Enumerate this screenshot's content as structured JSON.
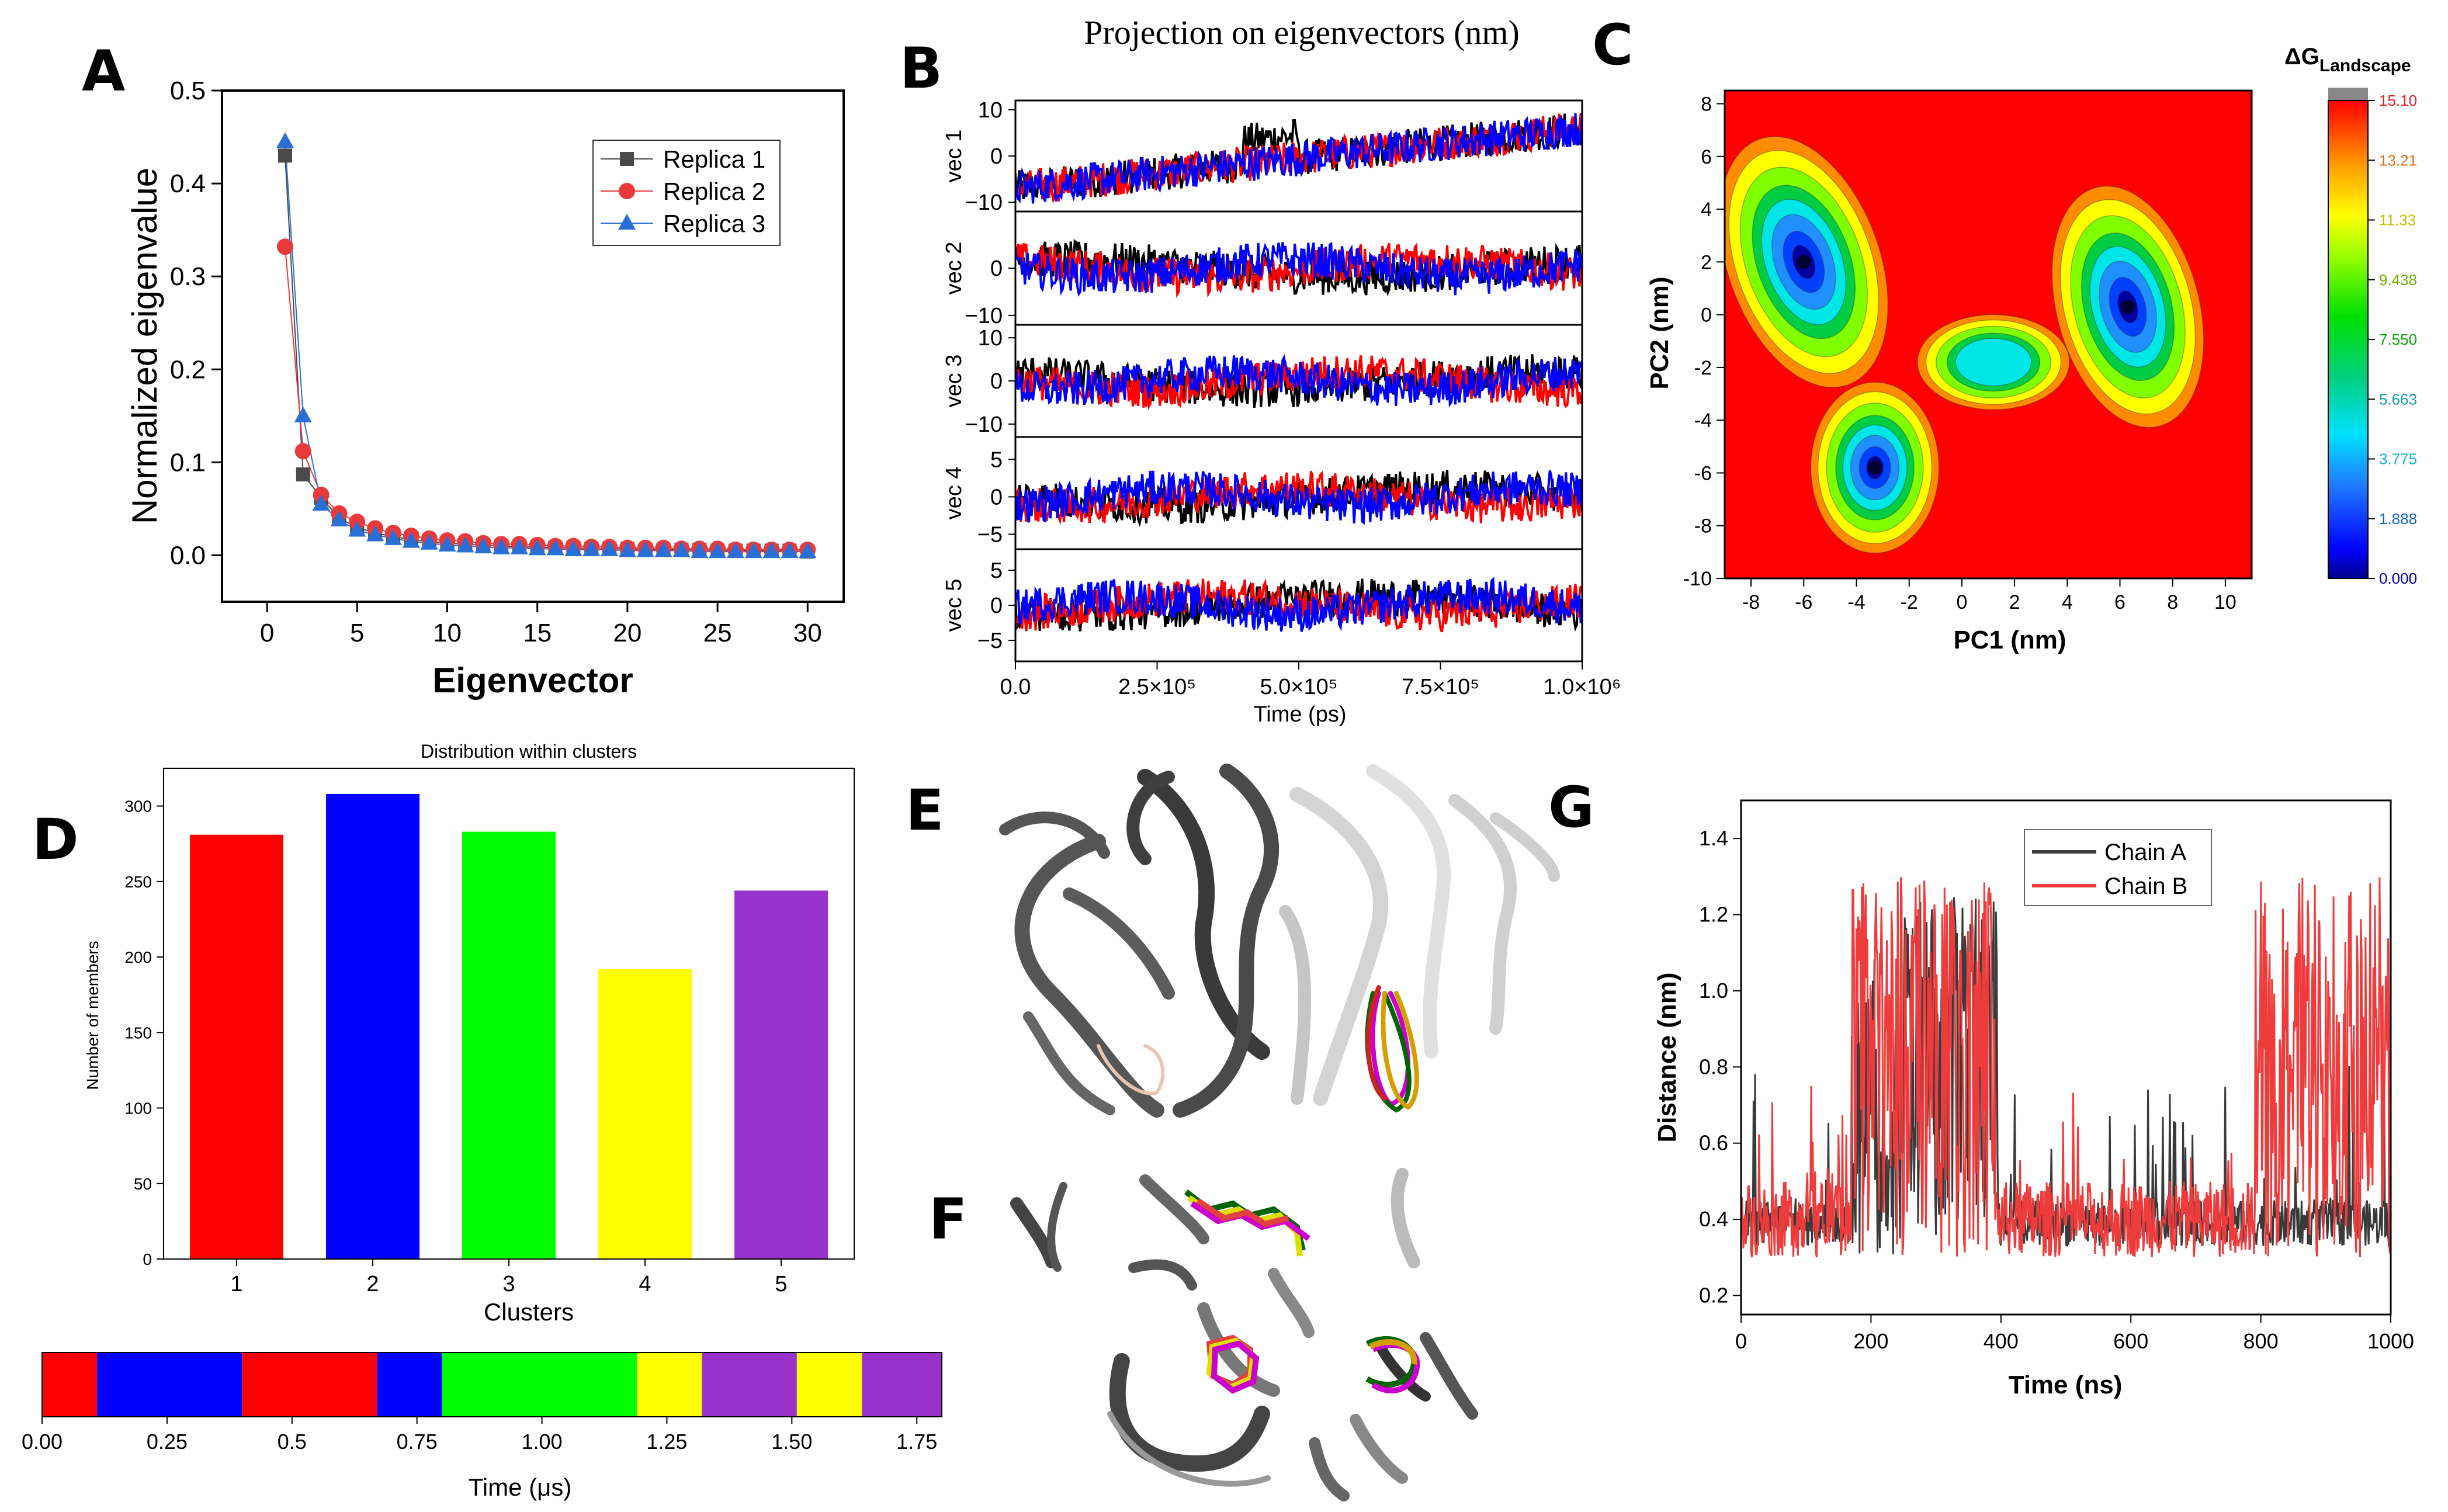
{
  "figure_title": "Projection on eigenvectors (nm)",
  "panels": {
    "A": "A",
    "B": "B",
    "C": "C",
    "D": "D",
    "E": "E",
    "F": "F",
    "G": "G"
  },
  "chart_data": [
    {
      "id": "A",
      "type": "scatter",
      "title": "",
      "xlabel": "Eigenvector",
      "ylabel": "Normalized eigenvalue",
      "xlim": [
        -2.5,
        32
      ],
      "ylim": [
        -0.05,
        0.5
      ],
      "xticks": [
        0,
        5,
        10,
        15,
        20,
        25,
        30
      ],
      "yticks": [
        0.0,
        0.1,
        0.2,
        0.3,
        0.4,
        0.5
      ],
      "xtick_labels": [
        "0",
        "5",
        "10",
        "15",
        "20",
        "25",
        "30"
      ],
      "ytick_labels": [
        "0.0",
        "0.1",
        "0.2",
        "0.3",
        "0.4",
        "0.5"
      ],
      "legend_position": "top-right",
      "series": [
        {
          "name": "Replica 1",
          "color": "#4a4a4a",
          "marker": "square",
          "x": [
            1,
            2,
            3,
            4,
            5,
            6,
            7,
            8,
            9,
            10,
            11,
            12,
            13,
            14,
            15,
            16,
            17,
            18,
            19,
            20,
            21,
            22,
            23,
            24,
            25,
            26,
            27,
            28,
            29,
            30
          ],
          "values": [
            0.43,
            0.087,
            0.062,
            0.04,
            0.03,
            0.024,
            0.02,
            0.017,
            0.015,
            0.013,
            0.012,
            0.011,
            0.01,
            0.009,
            0.009,
            0.008,
            0.008,
            0.007,
            0.007,
            0.007,
            0.006,
            0.006,
            0.006,
            0.006,
            0.005,
            0.005,
            0.005,
            0.005,
            0.005,
            0.004
          ]
        },
        {
          "name": "Replica 2",
          "color": "#e83a3a",
          "marker": "circle",
          "x": [
            1,
            2,
            3,
            4,
            5,
            6,
            7,
            8,
            9,
            10,
            11,
            12,
            13,
            14,
            15,
            16,
            17,
            18,
            19,
            20,
            21,
            22,
            23,
            24,
            25,
            26,
            27,
            28,
            29,
            30
          ],
          "values": [
            0.332,
            0.112,
            0.065,
            0.045,
            0.036,
            0.029,
            0.024,
            0.021,
            0.018,
            0.016,
            0.015,
            0.013,
            0.012,
            0.012,
            0.011,
            0.01,
            0.01,
            0.009,
            0.009,
            0.008,
            0.008,
            0.008,
            0.007,
            0.007,
            0.007,
            0.006,
            0.006,
            0.006,
            0.006,
            0.006
          ]
        },
        {
          "name": "Replica 3",
          "color": "#2a6fd6",
          "marker": "triangle",
          "x": [
            1,
            2,
            3,
            4,
            5,
            6,
            7,
            8,
            9,
            10,
            11,
            12,
            13,
            14,
            15,
            16,
            17,
            18,
            19,
            20,
            21,
            22,
            23,
            24,
            25,
            26,
            27,
            28,
            29,
            30
          ],
          "values": [
            0.445,
            0.15,
            0.055,
            0.038,
            0.027,
            0.022,
            0.018,
            0.015,
            0.013,
            0.011,
            0.01,
            0.009,
            0.008,
            0.008,
            0.007,
            0.007,
            0.006,
            0.006,
            0.006,
            0.005,
            0.005,
            0.005,
            0.005,
            0.004,
            0.004,
            0.004,
            0.004,
            0.004,
            0.004,
            0.004
          ]
        }
      ]
    },
    {
      "id": "B",
      "type": "line",
      "title": "Projection on eigenvectors (nm)",
      "xlabel": "Time (ps)",
      "xlim": [
        0,
        1000000
      ],
      "xtick_labels": [
        "0.0",
        "2.5×10⁵",
        "5.0×10⁵",
        "7.5×10⁵",
        "1.0×10⁶"
      ],
      "rows": [
        {
          "label": "vec 1",
          "ylim": [
            -12,
            12
          ],
          "yticks": [
            10,
            0,
            -10
          ],
          "ytick_labels": [
            "10",
            "0",
            "−10"
          ]
        },
        {
          "label": "vec 2",
          "ylim": [
            -12,
            12
          ],
          "yticks": [
            0,
            -10
          ],
          "ytick_labels": [
            "0",
            "−10"
          ]
        },
        {
          "label": "vec 3",
          "ylim": [
            -13,
            13
          ],
          "yticks": [
            10,
            0,
            -10
          ],
          "ytick_labels": [
            "10",
            "0",
            "−10"
          ]
        },
        {
          "label": "vec 4",
          "ylim": [
            -7,
            8
          ],
          "yticks": [
            5,
            0,
            -5
          ],
          "ytick_labels": [
            "5",
            "0",
            "−5"
          ]
        },
        {
          "label": "vec 5",
          "ylim": [
            -8,
            8
          ],
          "yticks": [
            5,
            0,
            -5
          ],
          "ytick_labels": [
            "5",
            "0",
            "−5"
          ]
        }
      ],
      "series_colors": [
        "#000000",
        "#ff0000",
        "#0000ff"
      ]
    },
    {
      "id": "C",
      "type": "heatmap",
      "xlabel": "PC1 (nm)",
      "ylabel": "PC2 (nm)",
      "xlim": [
        -9,
        11
      ],
      "ylim": [
        -10,
        8.5
      ],
      "xtick_labels": [
        "-8",
        "-6",
        "-4",
        "-2",
        "0",
        "2",
        "4",
        "6",
        "8",
        "10"
      ],
      "ytick_labels": [
        "8",
        "6",
        "4",
        "2",
        "0",
        "-2",
        "-4",
        "-6",
        "-8",
        "-10"
      ],
      "colorbar_title": "ΔG",
      "colorbar_subscript": "Landscape",
      "colorbar_ticks": [
        "15.10",
        "13.21",
        "11.33",
        "9.438",
        "7.550",
        "5.663",
        "3.775",
        "1.888",
        "0.000"
      ],
      "colorbar_tick_colors": [
        "#e02020",
        "#e07010",
        "#c0c000",
        "#70b000",
        "#10a010",
        "#10a0a0",
        "#10b0d0",
        "#1060d0",
        "#0000b0"
      ],
      "colorbar_range": [
        0,
        15.1
      ],
      "minima": [
        {
          "x": -6,
          "y": 2,
          "depth": 0.0
        },
        {
          "x": -3.3,
          "y": -5.8,
          "depth": 1.3
        },
        {
          "x": 6.3,
          "y": 0.3,
          "depth": 1.2
        }
      ]
    },
    {
      "id": "D",
      "type": "bar",
      "title": "Distribution within clusters",
      "xlabel": "Clusters",
      "ylabel": "Number of members",
      "categories": [
        "1",
        "2",
        "3",
        "4",
        "5"
      ],
      "values": [
        281,
        308,
        283,
        192,
        244
      ],
      "colors": [
        "#ff0000",
        "#0000ff",
        "#00ff00",
        "#ffff00",
        "#9932cc"
      ],
      "ylim": [
        0,
        325
      ],
      "yticks": [
        0,
        50,
        100,
        150,
        200,
        250,
        300
      ],
      "ytick_labels": [
        "0",
        "50",
        "100",
        "150",
        "200",
        "250",
        "300"
      ]
    },
    {
      "id": "D-time",
      "type": "bar",
      "xlabel": "Time (μs)",
      "xlim": [
        0,
        1.8
      ],
      "xtick_labels": [
        "0.00",
        "0.25",
        "0.5",
        "0.75",
        "1.00",
        "1.25",
        "1.50",
        "1.75"
      ],
      "segments": [
        {
          "start": 0.0,
          "end": 0.11,
          "cluster": 1
        },
        {
          "start": 0.11,
          "end": 0.4,
          "cluster": 2
        },
        {
          "start": 0.4,
          "end": 0.67,
          "cluster": 1
        },
        {
          "start": 0.67,
          "end": 0.8,
          "cluster": 2
        },
        {
          "start": 0.8,
          "end": 1.19,
          "cluster": 3
        },
        {
          "start": 1.19,
          "end": 1.32,
          "cluster": 4
        },
        {
          "start": 1.32,
          "end": 1.51,
          "cluster": 5
        },
        {
          "start": 1.51,
          "end": 1.64,
          "cluster": 4
        },
        {
          "start": 1.64,
          "end": 1.8,
          "cluster": 5
        }
      ]
    },
    {
      "id": "G",
      "type": "line",
      "xlabel": "Time (ns)",
      "ylabel": "Distance (nm)",
      "xlim": [
        0,
        1000
      ],
      "ylim": [
        0.15,
        1.5
      ],
      "xtick_labels": [
        "0",
        "200",
        "400",
        "600",
        "800",
        "1000"
      ],
      "ytick_labels": [
        "0.2",
        "0.4",
        "0.6",
        "0.8",
        "1.0",
        "1.2",
        "1.4"
      ],
      "legend_position": "top-center",
      "series": [
        {
          "name": "Chain A",
          "color": "#3a3a3a"
        },
        {
          "name": "Chain B",
          "color": "#ee3b3b"
        }
      ]
    }
  ]
}
